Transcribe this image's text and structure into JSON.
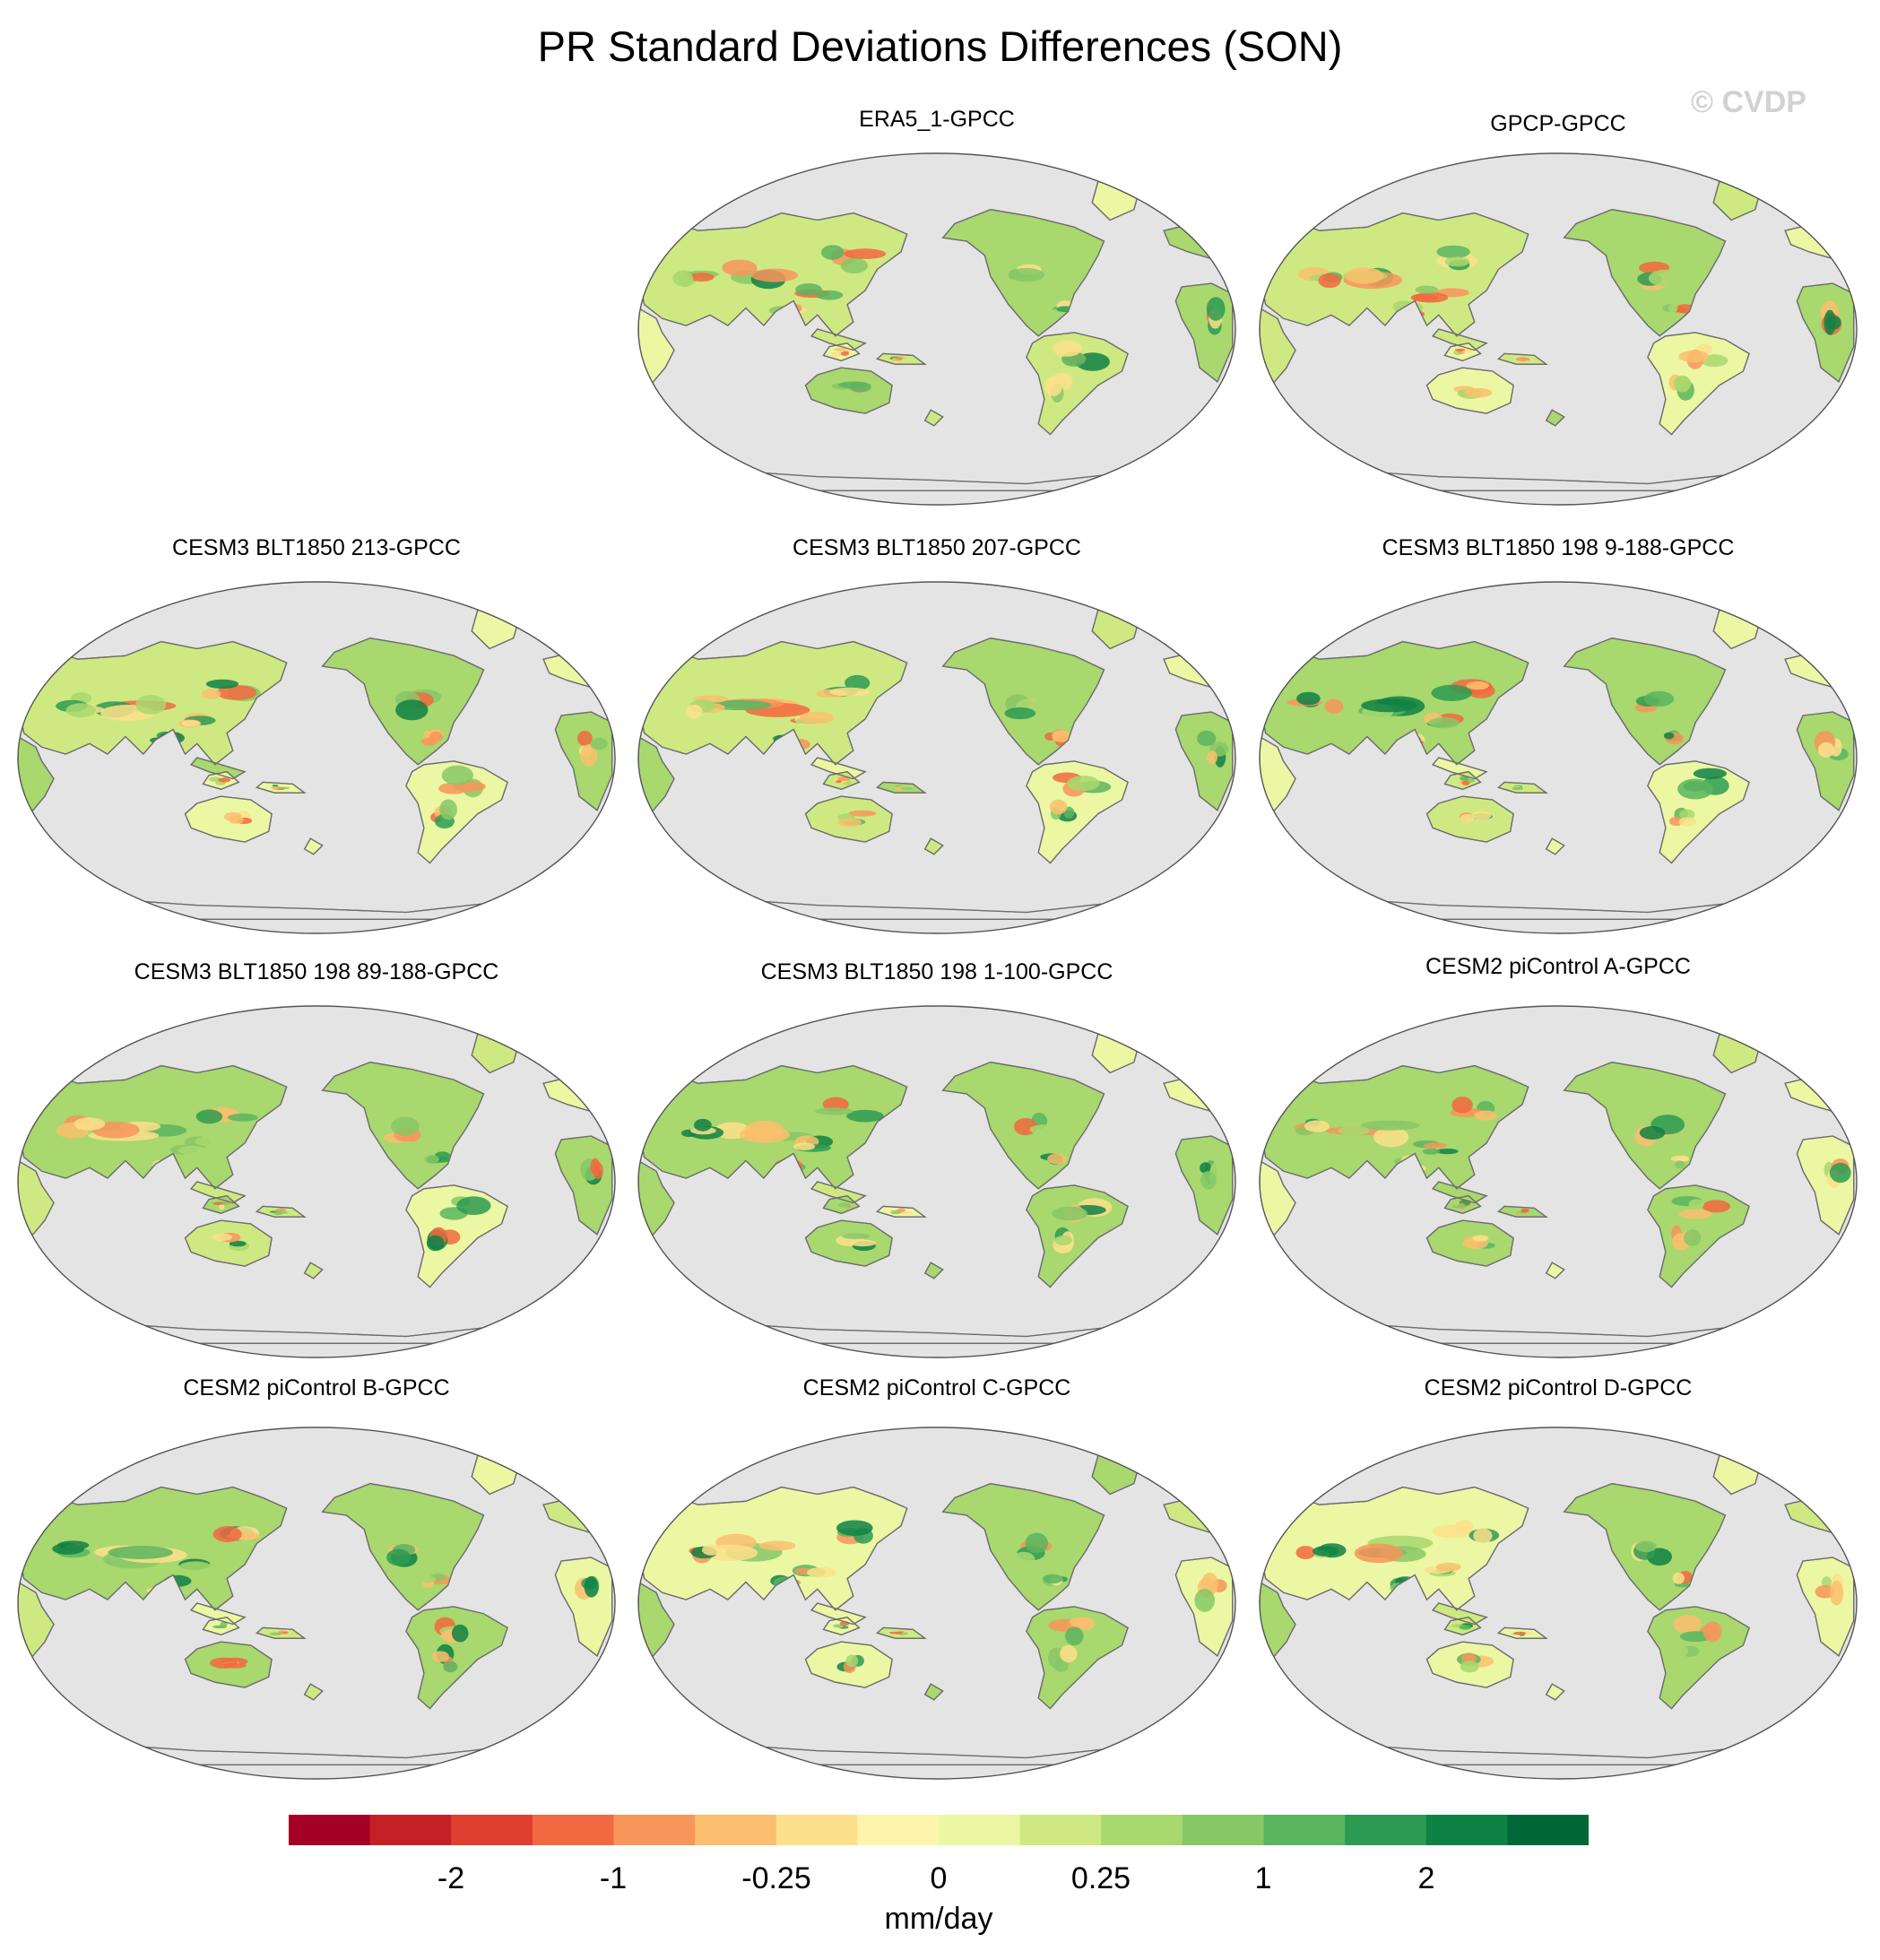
{
  "figure": {
    "title": "PR Standard Deviations Differences (SON)",
    "watermark": "© CVDP"
  },
  "panels": [
    {
      "title": "ERA5_1-GPCC"
    },
    {
      "title": "GPCP-GPCC"
    },
    {
      "title": "CESM3 BLT1850 213-GPCC"
    },
    {
      "title": "CESM3 BLT1850 207-GPCC"
    },
    {
      "title": "CESM3 BLT1850 198 9-188-GPCC"
    },
    {
      "title": "CESM3 BLT1850 198 89-188-GPCC"
    },
    {
      "title": "CESM3 BLT1850 198 1-100-GPCC"
    },
    {
      "title": "CESM2 piControl A-GPCC"
    },
    {
      "title": "CESM2 piControl B-GPCC"
    },
    {
      "title": "CESM2 piControl C-GPCC"
    },
    {
      "title": "CESM2 piControl D-GPCC"
    }
  ],
  "map_style": {
    "projection": "robinson",
    "central_longitude": 180,
    "ocean_color": "#e4e4e4",
    "coastline_color": "#6e6e6e"
  },
  "colorbar": {
    "units": "mm/day",
    "colors": [
      "#a50026",
      "#c62027",
      "#de3f2e",
      "#f26841",
      "#f8955a",
      "#fcbf6f",
      "#fde08b",
      "#fef5ad",
      "#ecf7a3",
      "#cfe982",
      "#a8d86e",
      "#86c866",
      "#5ab55f",
      "#2d9b52",
      "#0f8145",
      "#006837"
    ],
    "tick_labels": [
      "-2",
      "-1",
      "-0.25",
      "0",
      "0.25",
      "1",
      "2"
    ]
  }
}
